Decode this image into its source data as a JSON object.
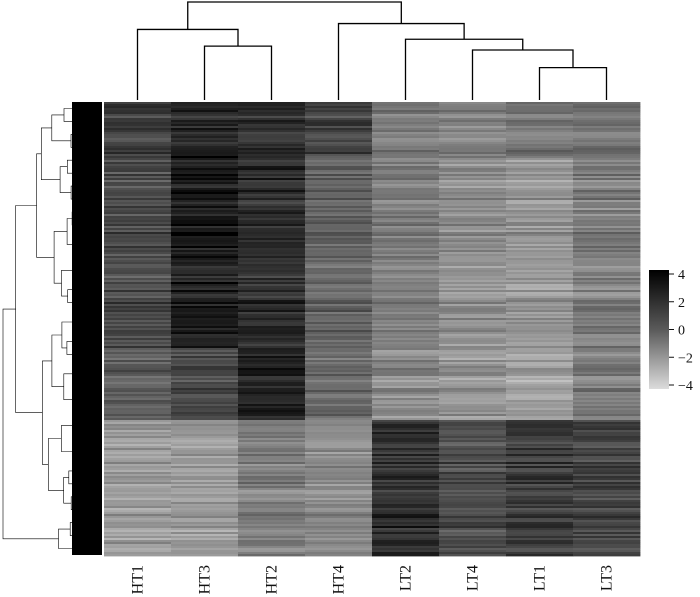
{
  "chart_data": {
    "type": "heatmap",
    "title": "",
    "xlabel": "",
    "ylabel": "",
    "columns": [
      "HT1",
      "HT3",
      "HT2",
      "HT4",
      "LT2",
      "LT4",
      "LT1",
      "LT3"
    ],
    "legend": {
      "ticks": [
        "4",
        "2",
        "0",
        "−2",
        "−4"
      ],
      "range": [
        -4,
        4
      ],
      "colors": [
        "#000000",
        "#dcdcdc"
      ],
      "placement": "right"
    },
    "column_dendrogram": {
      "merges": [
        {
          "left": "LT1",
          "right": "LT3",
          "height": 0.33
        },
        {
          "left": "LT4",
          "right": "LT1+LT3",
          "height": 0.51
        },
        {
          "left": "HT3",
          "right": "HT2",
          "height": 0.55
        },
        {
          "left": "LT2",
          "right": "LT4+LT1+LT3",
          "height": 0.62
        },
        {
          "left": "HT1",
          "right": "HT3+HT2",
          "height": 0.72
        },
        {
          "left": "HT4",
          "right": "LT2+LT4+LT1+LT3",
          "height": 0.78
        },
        {
          "left": "HT1+HT3+HT2",
          "right": "HT4+LT2+LT4+LT1+LT3",
          "height": 1.0
        }
      ]
    },
    "row_blocks": [
      {
        "name": "top",
        "fraction": 0.12,
        "values": [
          1.6,
          2.4,
          2.0,
          1.4,
          -0.6,
          -0.8,
          -0.4,
          -0.5
        ]
      },
      {
        "name": "upper",
        "fraction": 0.42,
        "values": [
          1.3,
          3.0,
          2.3,
          0.3,
          -0.6,
          -1.2,
          -1.5,
          -0.6
        ]
      },
      {
        "name": "middle",
        "fraction": 0.16,
        "values": [
          0.7,
          1.5,
          2.9,
          0.1,
          -1.0,
          -1.4,
          -1.8,
          -0.5
        ]
      },
      {
        "name": "bottom",
        "fraction": 0.3,
        "values": [
          -1.5,
          -1.5,
          -0.6,
          -1.0,
          2.3,
          1.2,
          1.8,
          1.6
        ]
      }
    ]
  }
}
